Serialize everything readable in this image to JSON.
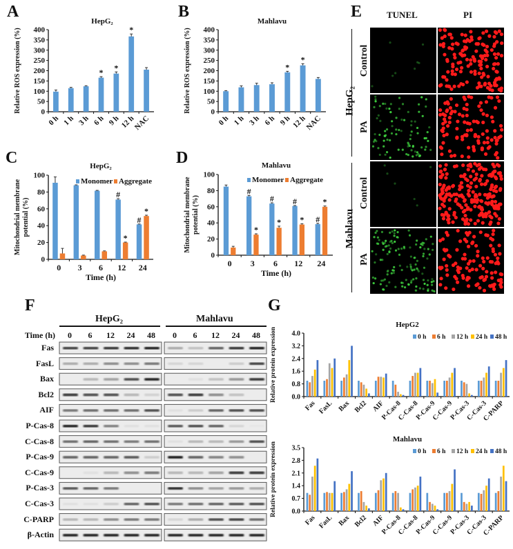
{
  "panel_labels": {
    "A": "A",
    "B": "B",
    "C": "C",
    "D": "D",
    "E": "E",
    "F": "F",
    "G": "G"
  },
  "colors": {
    "blue": "#5B9BD5",
    "orange": "#ED7D31",
    "gray": "#A5A5A5",
    "yellow": "#FFC000",
    "darkblue": "#4472C4"
  },
  "chart_data": [
    {
      "panel": "A",
      "type": "bar",
      "title": "HepG₂",
      "ylabel_lines": [
        "Relative ROS expression (%)"
      ],
      "xlabel": "",
      "categories": [
        "0 h",
        "1 h",
        "3 h",
        "6 h",
        "9 h",
        "12 h",
        "NAC"
      ],
      "series": [
        {
          "values": [
            98,
            115,
            124,
            166,
            186,
            367,
            205
          ],
          "errors": [
            8,
            4,
            3,
            5,
            8,
            12,
            10
          ],
          "annotations": [
            "",
            "",
            "",
            "*",
            "*",
            "*",
            ""
          ],
          "color": "#5B9BD5"
        }
      ],
      "ylim": [
        0,
        400
      ],
      "yticks": [
        "0",
        "50",
        "100",
        "150",
        "200",
        "250",
        "300",
        "350",
        "400"
      ],
      "grid": false,
      "legend": "none"
    },
    {
      "panel": "B",
      "type": "bar",
      "title": "Mahlavu",
      "ylabel_lines": [
        "Relative ROS expression (%)"
      ],
      "xlabel": "",
      "categories": [
        "0 h",
        "1 h",
        "3 h",
        "6 h",
        "9 h",
        "12 h",
        "NAC"
      ],
      "series": [
        {
          "values": [
            100,
            119,
            130,
            134,
            192,
            226,
            160
          ],
          "errors": [
            3,
            7,
            9,
            7,
            5,
            8,
            7
          ],
          "annotations": [
            "",
            "",
            "",
            "",
            "*",
            "*",
            ""
          ],
          "color": "#5B9BD5"
        }
      ],
      "ylim": [
        0,
        400
      ],
      "yticks": [
        "0",
        "50",
        "100",
        "150",
        "200",
        "250",
        "300",
        "350",
        "400"
      ],
      "grid": false,
      "legend": "none"
    },
    {
      "panel": "C",
      "type": "bar",
      "title": "HepG₂",
      "ylabel_lines": [
        "Mitochondrial membrane",
        "potential (%)"
      ],
      "xlabel": "Time (h)",
      "categories": [
        "0",
        "3",
        "6",
        "12",
        "24"
      ],
      "series": [
        {
          "name": "Monomer",
          "values": [
            91,
            88,
            81.5,
            71,
            41.5
          ],
          "errors": [
            7,
            0.5,
            0.5,
            1,
            0.5
          ],
          "annotations": [
            "",
            "",
            "",
            "#",
            "#"
          ],
          "color": "#5B9BD5"
        },
        {
          "name": "Aggregate",
          "values": [
            7,
            4.5,
            9.5,
            20,
            51.5
          ],
          "errors": [
            6,
            0.5,
            0.5,
            0.5,
            1
          ],
          "annotations": [
            "",
            "",
            "",
            "*",
            "*"
          ],
          "color": "#ED7D31"
        }
      ],
      "ylim": [
        0,
        100
      ],
      "yticks": [
        "0",
        "20",
        "40",
        "60",
        "80",
        "100"
      ],
      "grid": false,
      "legend": "top"
    },
    {
      "panel": "D",
      "type": "bar",
      "title": "Mahlavu",
      "ylabel_lines": [
        "Mitochondrial membrane",
        "potential (%)"
      ],
      "xlabel": "Time (h)",
      "categories": [
        "0",
        "3",
        "6",
        "12",
        "24"
      ],
      "series": [
        {
          "name": "Monomer",
          "values": [
            85,
            73,
            64,
            61,
            38.5
          ],
          "errors": [
            2,
            1,
            1,
            0.5,
            1
          ],
          "annotations": [
            "",
            "#",
            "#",
            "#",
            "#"
          ],
          "color": "#5B9BD5"
        },
        {
          "name": "Aggregate",
          "values": [
            9.5,
            25.5,
            34,
            38,
            60
          ],
          "errors": [
            1.5,
            1,
            2,
            1,
            1
          ],
          "annotations": [
            "",
            "*",
            "*",
            "*",
            "*"
          ],
          "color": "#ED7D31"
        }
      ],
      "ylim": [
        0,
        100
      ],
      "yticks": [
        "0",
        "20",
        "40",
        "60",
        "80",
        "100"
      ],
      "grid": false,
      "legend": "top"
    },
    {
      "panel": "G-top",
      "type": "bar",
      "title": "HepG2",
      "ylabel_lines": [
        "Relative protein expression"
      ],
      "xlabel": "",
      "categories": [
        "Fas",
        "FasL",
        "Bax",
        "Bcl2",
        "AIF",
        "P-Cas-8",
        "C-Cas-8",
        "P-Cas-9",
        "C-Cas-9",
        "P-Cas-3",
        "C-Cas-3",
        "C-PARP"
      ],
      "series": [
        {
          "name": "0 h",
          "values": [
            1.0,
            1.0,
            1.0,
            1.0,
            1.0,
            1.0,
            1.0,
            1.0,
            1.0,
            1.0,
            1.0,
            1.0
          ],
          "color": "#5B9BD5"
        },
        {
          "name": "6 h",
          "values": [
            0.9,
            1.1,
            1.2,
            0.9,
            1.25,
            0.75,
            1.3,
            1.0,
            1.0,
            0.9,
            1.0,
            1.0
          ],
          "color": "#ED7D31"
        },
        {
          "name": "12  h",
          "values": [
            1.3,
            2.1,
            1.4,
            0.75,
            1.25,
            0.3,
            1.5,
            0.85,
            1.2,
            0.8,
            1.2,
            1.5
          ],
          "color": "#A5A5A5"
        },
        {
          "name": "24 h",
          "values": [
            1.7,
            1.8,
            2.3,
            0.5,
            1.2,
            0.15,
            1.5,
            1.1,
            1.5,
            0.2,
            1.5,
            1.8
          ],
          "color": "#FFC000"
        },
        {
          "name": "48 h",
          "values": [
            2.3,
            2.4,
            3.2,
            0.2,
            1.45,
            0.1,
            1.8,
            0.25,
            1.8,
            0.1,
            1.9,
            2.3
          ],
          "color": "#4472C4"
        }
      ],
      "ylim": [
        0,
        4.0
      ],
      "yticks": [
        "0.0",
        "0.8",
        "1.6",
        "2.4",
        "3.2",
        "4.0"
      ],
      "grid": false,
      "legend": "top-right"
    },
    {
      "panel": "G-bottom",
      "type": "bar",
      "title": "Mahlavu",
      "ylabel_lines": [
        "Relative protein expression"
      ],
      "xlabel": "",
      "categories": [
        "Fas",
        "FasL",
        "Bax",
        "Bcl2",
        "AIF",
        "P-Cas-8",
        "C-Cas-8",
        "P-Cas-9",
        "C-Cas-9",
        "P-Cas-3",
        "C-Cas-3",
        "C-PARP"
      ],
      "series": [
        {
          "name": "0 h",
          "values": [
            1.0,
            1.0,
            1.0,
            1.0,
            1.0,
            1.0,
            1.0,
            1.0,
            1.0,
            1.0,
            1.0,
            1.0
          ],
          "color": "#5B9BD5"
        },
        {
          "name": "6 h",
          "values": [
            0.9,
            1.05,
            1.05,
            1.1,
            1.15,
            1.1,
            1.2,
            0.5,
            1.0,
            0.5,
            0.95,
            1.1
          ],
          "color": "#ED7D31"
        },
        {
          "name": "12  h",
          "values": [
            1.9,
            1.0,
            1.2,
            0.5,
            1.7,
            1.0,
            1.3,
            0.4,
            1.1,
            0.4,
            1.15,
            1.9
          ],
          "color": "#A5A5A5"
        },
        {
          "name": "24 h",
          "values": [
            2.5,
            1.0,
            1.5,
            0.3,
            1.8,
            0.2,
            1.4,
            0.3,
            1.5,
            0.5,
            1.4,
            2.5
          ],
          "color": "#FFC000"
        },
        {
          "name": "48 h",
          "values": [
            2.9,
            1.65,
            2.2,
            0.15,
            2.1,
            0.1,
            1.9,
            0.1,
            2.3,
            0.3,
            1.8,
            1.65
          ],
          "color": "#4472C4"
        }
      ],
      "ylim": [
        0,
        3.5
      ],
      "yticks": [
        "0.0",
        "0.7",
        "1.4",
        "2.1",
        "2.8",
        "3.5"
      ],
      "grid": false,
      "legend": "top-right"
    }
  ],
  "panel_e": {
    "columns": [
      "TUNEL",
      "PI"
    ],
    "groups": [
      {
        "label": "HepG₂",
        "rows": [
          "Control",
          "PA"
        ]
      },
      {
        "label": "Mahlavu",
        "rows": [
          "Control",
          "PA"
        ]
      }
    ]
  },
  "panel_f": {
    "groups": [
      "HepG₂",
      "Mahlavu"
    ],
    "time_label": "Time (h)",
    "times": [
      "0",
      "6",
      "12",
      "24",
      "48"
    ],
    "rows": [
      {
        "label": "Fas",
        "HepG2": [
          0.8,
          0.8,
          0.85,
          0.9,
          0.95
        ],
        "Mahlavu": [
          0.3,
          0.2,
          0.65,
          0.85,
          0.95
        ]
      },
      {
        "label": "FasL",
        "HepG2": [
          0.3,
          0.3,
          0.45,
          0.45,
          0.55
        ],
        "Mahlavu": [
          0.1,
          0.1,
          0.0,
          0.15,
          0.8
        ]
      },
      {
        "label": "Bax",
        "HepG2": [
          0.0,
          0.25,
          0.35,
          0.75,
          0.95
        ],
        "Mahlavu": [
          0.0,
          0.05,
          0.2,
          0.4,
          0.85
        ]
      },
      {
        "label": "Bcl2",
        "HepG2": [
          0.85,
          0.75,
          0.75,
          0.25,
          0.12
        ],
        "Mahlavu": [
          0.75,
          0.85,
          0.45,
          0.2,
          0.0
        ]
      },
      {
        "label": "AIF",
        "HepG2": [
          0.55,
          0.6,
          0.6,
          0.6,
          0.75
        ],
        "Mahlavu": [
          0.05,
          0.15,
          0.65,
          0.75,
          0.75
        ]
      },
      {
        "label": "P-Cas-8",
        "HepG2": [
          0.95,
          0.85,
          0.5,
          0.05,
          0.05
        ],
        "Mahlavu": [
          0.7,
          0.75,
          0.65,
          0.1,
          0.02
        ]
      },
      {
        "label": "C-Cas-8",
        "HepG2": [
          0.6,
          0.65,
          0.6,
          0.55,
          0.6
        ],
        "Mahlavu": [
          0.05,
          0.25,
          0.25,
          0.4,
          0.75
        ]
      },
      {
        "label": "P-Cas-9",
        "HepG2": [
          0.65,
          0.65,
          0.65,
          0.7,
          0.15
        ],
        "Mahlavu": [
          0.98,
          0.65,
          0.5,
          0.45,
          0.0
        ]
      },
      {
        "label": "C-Cas-9",
        "HepG2": [
          0.0,
          0.05,
          0.25,
          0.45,
          0.55
        ],
        "Mahlavu": [
          0.25,
          0.25,
          0.35,
          0.85,
          0.85
        ]
      },
      {
        "label": "P-Cas-3",
        "HepG2": [
          0.7,
          0.65,
          0.55,
          0.0,
          0.0
        ],
        "Mahlavu": [
          0.9,
          0.45,
          0.35,
          0.4,
          0.3
        ]
      },
      {
        "label": "C-Cas-3",
        "HepG2": [
          0.05,
          0.05,
          0.15,
          0.65,
          0.75
        ],
        "Mahlavu": [
          0.55,
          0.6,
          0.65,
          0.7,
          0.75
        ]
      },
      {
        "label": "C-PARP",
        "HepG2": [
          0.25,
          0.25,
          0.45,
          0.55,
          0.55
        ],
        "Mahlavu": [
          0.1,
          0.3,
          0.75,
          0.8,
          0.6
        ]
      },
      {
        "label": "β-Actin",
        "HepG2": [
          0.95,
          0.95,
          0.95,
          0.95,
          0.95
        ],
        "Mahlavu": [
          0.95,
          0.95,
          0.95,
          0.95,
          0.95
        ]
      }
    ]
  }
}
